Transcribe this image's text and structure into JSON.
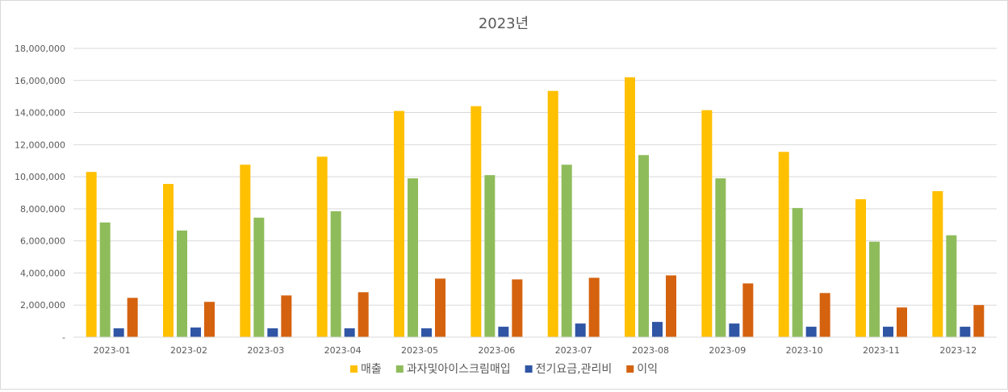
{
  "chart_data": {
    "type": "bar",
    "title": "2023년",
    "categories": [
      "2023-01",
      "2023-02",
      "2023-03",
      "2023-04",
      "2023-05",
      "2023-06",
      "2023-07",
      "2023-08",
      "2023-09",
      "2023-10",
      "2023-11",
      "2023-12"
    ],
    "series": [
      {
        "name": "매출",
        "color": "#FFC000",
        "values": [
          10300000,
          9550000,
          10750000,
          11250000,
          14100000,
          14400000,
          15350000,
          16200000,
          14150000,
          11550000,
          8600000,
          9100000
        ]
      },
      {
        "name": "과자및아이스크림매입",
        "color": "#8FBC5B",
        "values": [
          7150000,
          6650000,
          7450000,
          7850000,
          9900000,
          10100000,
          10750000,
          11350000,
          9900000,
          8050000,
          5950000,
          6350000
        ]
      },
      {
        "name": "전기요금,관리비",
        "color": "#2F55A4",
        "values": [
          550000,
          600000,
          550000,
          550000,
          550000,
          650000,
          850000,
          950000,
          850000,
          650000,
          650000,
          650000
        ]
      },
      {
        "name": "이익",
        "color": "#D5620F",
        "values": [
          2450000,
          2200000,
          2600000,
          2800000,
          3650000,
          3600000,
          3700000,
          3850000,
          3350000,
          2750000,
          1850000,
          2000000
        ]
      }
    ],
    "yticks": [
      "-",
      "2,000,000",
      "4,000,000",
      "6,000,000",
      "8,000,000",
      "10,000,000",
      "12,000,000",
      "14,000,000",
      "16,000,000",
      "18,000,000"
    ],
    "ylim": [
      0,
      18000000
    ],
    "grid": true,
    "legend_position": "bottom"
  }
}
